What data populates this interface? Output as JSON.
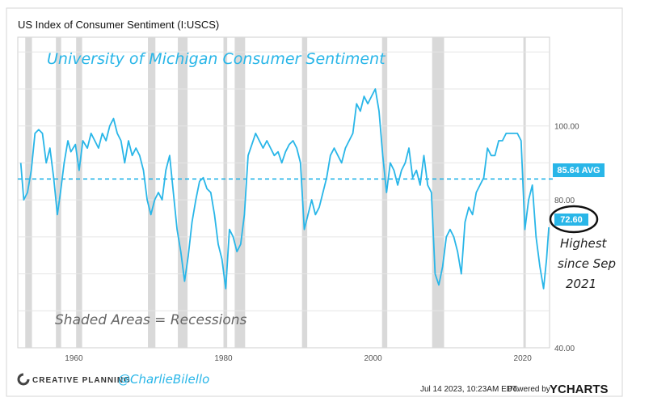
{
  "chart_data": {
    "type": "line",
    "title": "US Index of Consumer Sentiment (I:USCS)",
    "subtitle": "University of Michigan Consumer Sentiment",
    "xlabel": "",
    "ylabel": "",
    "xlim": [
      1952.5,
      2023.6
    ],
    "ylim": [
      40,
      124
    ],
    "x_ticks": [
      "1960",
      "1980",
      "2000",
      "2020"
    ],
    "x_tick_values": [
      1960,
      1980,
      2000,
      2020
    ],
    "y_ticks": [
      "100.00",
      "80.00",
      "40.00"
    ],
    "y_tick_values": [
      100,
      80,
      40
    ],
    "grid": true,
    "series": [
      {
        "name": "Consumer Sentiment",
        "color": "#29b6e8",
        "x": [
          1952.9,
          1953.3,
          1953.8,
          1954.3,
          1954.8,
          1955.3,
          1955.8,
          1956.3,
          1956.8,
          1957.3,
          1957.8,
          1958.2,
          1958.7,
          1959.2,
          1959.6,
          1960.2,
          1960.7,
          1961.2,
          1961.8,
          1962.3,
          1962.8,
          1963.3,
          1963.8,
          1964.3,
          1964.8,
          1965.3,
          1965.8,
          1966.3,
          1966.8,
          1967.3,
          1967.8,
          1968.3,
          1968.8,
          1969.3,
          1969.8,
          1970.3,
          1970.8,
          1971.3,
          1971.8,
          1972.3,
          1972.8,
          1973.3,
          1973.8,
          1974.3,
          1974.8,
          1975.3,
          1975.8,
          1976.3,
          1976.8,
          1977.3,
          1977.8,
          1978.3,
          1978.8,
          1979.3,
          1979.8,
          1980.3,
          1980.8,
          1981.3,
          1981.8,
          1982.3,
          1982.8,
          1983.3,
          1983.8,
          1984.3,
          1984.8,
          1985.3,
          1985.8,
          1986.3,
          1986.8,
          1987.3,
          1987.8,
          1988.3,
          1988.8,
          1989.3,
          1989.8,
          1990.3,
          1990.8,
          1991.3,
          1991.8,
          1992.3,
          1992.8,
          1993.3,
          1993.8,
          1994.3,
          1994.8,
          1995.3,
          1995.8,
          1996.3,
          1996.8,
          1997.3,
          1997.8,
          1998.3,
          1998.8,
          1999.3,
          1999.8,
          2000.3,
          2000.8,
          2001.3,
          2001.8,
          2002.3,
          2002.8,
          2003.3,
          2003.8,
          2004.3,
          2004.8,
          2005.3,
          2005.8,
          2006.3,
          2006.8,
          2007.3,
          2007.8,
          2008.3,
          2008.8,
          2009.3,
          2009.8,
          2010.3,
          2010.8,
          2011.3,
          2011.8,
          2012.3,
          2012.8,
          2013.3,
          2013.8,
          2014.3,
          2014.8,
          2015.3,
          2015.8,
          2016.3,
          2016.8,
          2017.3,
          2017.8,
          2018.3,
          2018.8,
          2019.3,
          2019.8,
          2020.3,
          2020.8,
          2021.3,
          2021.8,
          2022.3,
          2022.8,
          2023.2,
          2023.5
        ],
        "values": [
          90,
          80,
          82,
          88,
          98,
          99,
          98,
          90,
          94,
          86,
          76,
          82,
          90,
          96,
          93,
          95,
          88,
          96,
          94,
          98,
          96,
          94,
          98,
          96,
          100,
          102,
          98,
          96,
          90,
          96,
          92,
          94,
          92,
          88,
          80,
          76,
          80,
          82,
          80,
          88,
          92,
          82,
          72,
          66,
          58,
          65,
          74,
          80,
          85,
          86,
          83,
          82,
          76,
          68,
          64,
          56,
          72,
          70,
          66,
          68,
          76,
          92,
          95,
          98,
          96,
          94,
          96,
          94,
          92,
          93,
          90,
          93,
          95,
          96,
          94,
          90,
          72,
          76,
          80,
          76,
          78,
          82,
          86,
          92,
          94,
          92,
          90,
          94,
          96,
          98,
          106,
          104,
          108,
          106,
          108,
          110,
          104,
          92,
          82,
          90,
          88,
          84,
          88,
          90,
          94,
          86,
          88,
          84,
          92,
          84,
          82,
          60,
          57,
          62,
          70,
          72,
          70,
          66,
          60,
          74,
          78,
          76,
          82,
          84,
          86,
          94,
          92,
          92,
          96,
          96,
          98,
          98,
          98,
          98,
          96,
          72,
          80,
          84,
          70,
          62,
          56,
          64,
          72.6
        ]
      }
    ],
    "average": {
      "value": 85.64,
      "label": "85.64 AVG"
    },
    "last_value": {
      "value": 72.6,
      "label": "72.60"
    },
    "recessions": [
      [
        1953.5,
        1954.4
      ],
      [
        1957.6,
        1958.3
      ],
      [
        1960.3,
        1961.1
      ],
      [
        1969.9,
        1970.9
      ],
      [
        1973.9,
        1975.2
      ],
      [
        1980.0,
        1980.5
      ],
      [
        1981.5,
        1982.9
      ],
      [
        1990.5,
        1991.2
      ],
      [
        2001.2,
        2001.9
      ],
      [
        2007.9,
        2009.5
      ],
      [
        2020.1,
        2020.4
      ]
    ],
    "annotations": [
      "University of Michigan Consumer Sentiment",
      "Shaded Areas = Recessions",
      "Highest",
      "since Sep",
      "2021"
    ]
  },
  "footer": {
    "brand": "CREATIVE PLANNING",
    "handle": "@CharlieBilello",
    "timestamp": "Jul 14 2023, 10:23AM EDT.",
    "powered_by": "Powered by",
    "provider": "YCHARTS"
  },
  "colors": {
    "line": "#29b6e8",
    "shade": "#d9d9d9",
    "avg_badge": "#29b6e8",
    "annotation": "#29b6e8"
  }
}
